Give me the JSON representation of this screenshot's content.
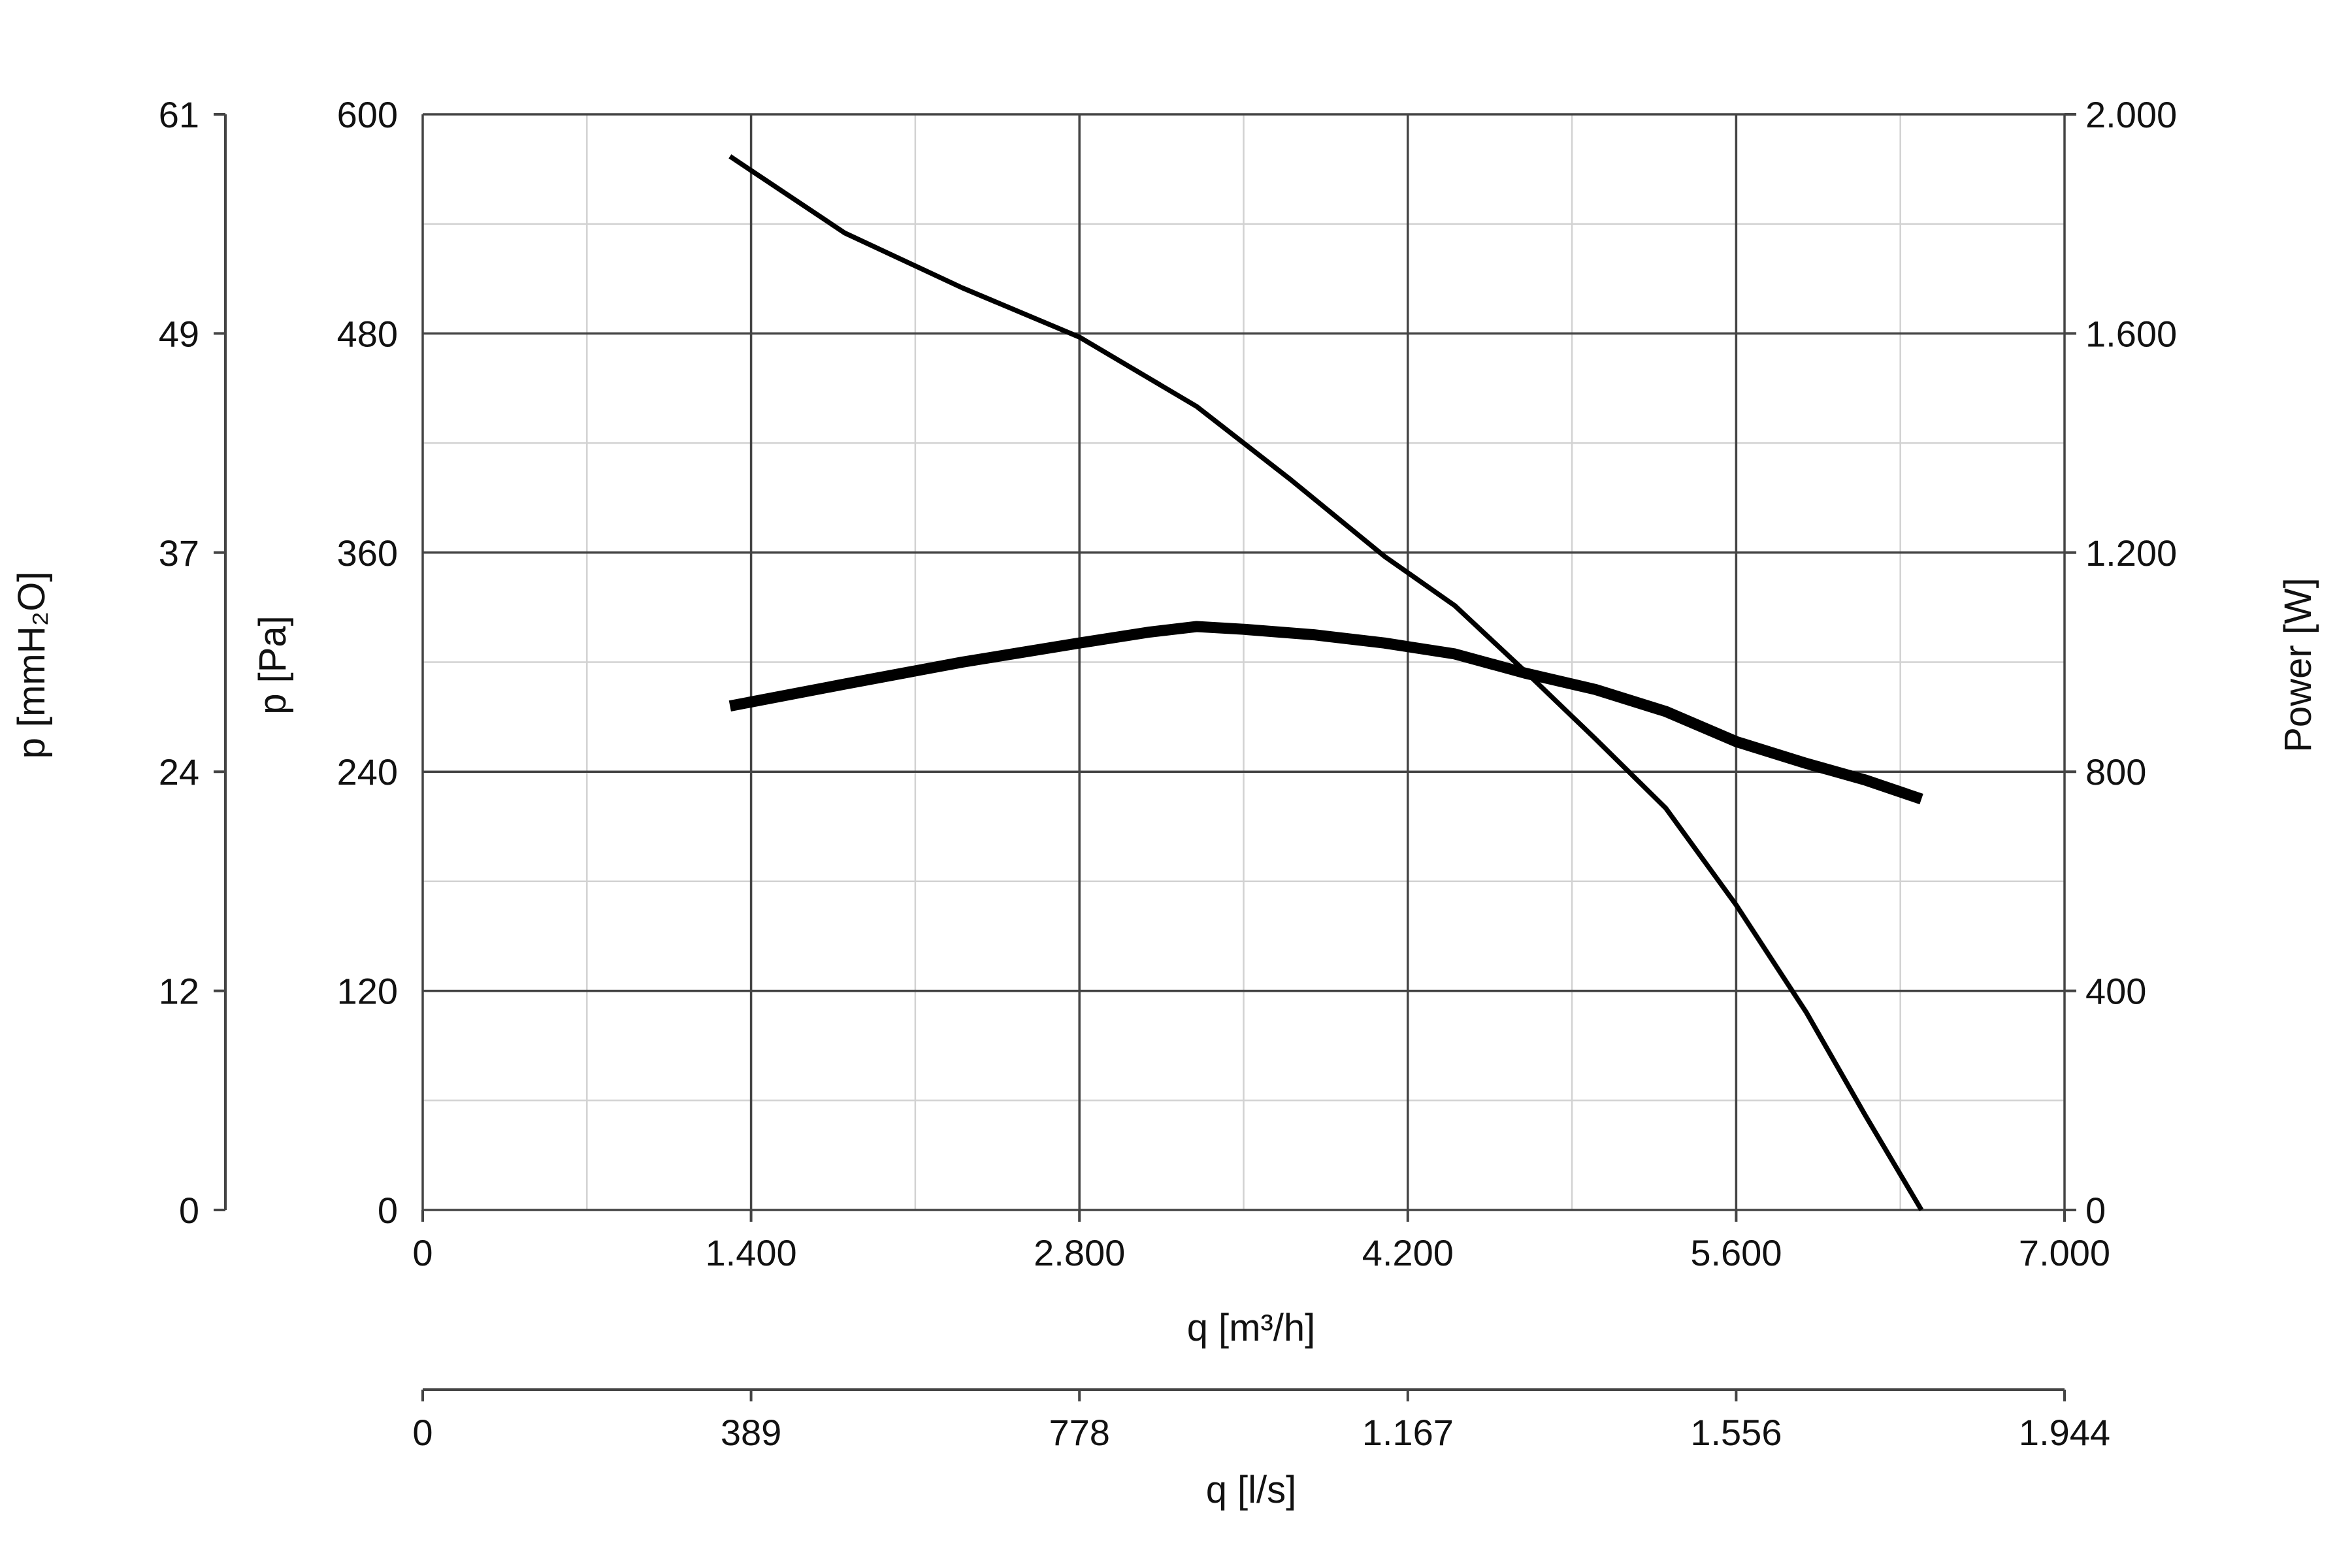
{
  "chart_data": {
    "type": "line",
    "title": "",
    "xlabel": "q [m³/h]",
    "xlabel_secondary": "q [l/s]",
    "ylabel": "p [Pa]",
    "ylabel_secondary": "p [mmH₂O]",
    "ylabel_right": "Power [W]",
    "xlim": [
      0,
      7000
    ],
    "ylim": [
      0,
      600
    ],
    "ylim_right": [
      0,
      2000
    ],
    "grid": true,
    "x_ticks": [
      {
        "value": 0,
        "label": "0"
      },
      {
        "value": 1400,
        "label": "1.400"
      },
      {
        "value": 2800,
        "label": "2.800"
      },
      {
        "value": 4200,
        "label": "4.200"
      },
      {
        "value": 5600,
        "label": "5.600"
      },
      {
        "value": 7000,
        "label": "7.000"
      }
    ],
    "x_ticks_secondary": [
      {
        "value": 0,
        "label": "0"
      },
      {
        "value": 1400,
        "label": "389"
      },
      {
        "value": 2800,
        "label": "778"
      },
      {
        "value": 4200,
        "label": "1.167"
      },
      {
        "value": 5600,
        "label": "1.556"
      },
      {
        "value": 7000,
        "label": "1.944"
      }
    ],
    "y_ticks": [
      {
        "value": 0,
        "label": "0"
      },
      {
        "value": 120,
        "label": "120"
      },
      {
        "value": 240,
        "label": "240"
      },
      {
        "value": 360,
        "label": "360"
      },
      {
        "value": 480,
        "label": "480"
      },
      {
        "value": 600,
        "label": "600"
      }
    ],
    "y_ticks_secondary": [
      {
        "value": 0,
        "label": "0"
      },
      {
        "value": 120,
        "label": "12"
      },
      {
        "value": 240,
        "label": "24"
      },
      {
        "value": 360,
        "label": "37"
      },
      {
        "value": 480,
        "label": "49"
      },
      {
        "value": 600,
        "label": "61"
      }
    ],
    "y_ticks_right": [
      {
        "value": 0,
        "label": "0"
      },
      {
        "value": 400,
        "label": "400"
      },
      {
        "value": 800,
        "label": "800"
      },
      {
        "value": 1200,
        "label": "1.200"
      },
      {
        "value": 1600,
        "label": "1.600"
      },
      {
        "value": 2000,
        "label": "2.000"
      }
    ],
    "series": [
      {
        "axis": "left",
        "line_weight": "thin",
        "x": [
          1310,
          1800,
          2300,
          2800,
          3300,
          3700,
          4100,
          4400,
          4700,
          5000,
          5300,
          5600,
          5900,
          6150,
          6390
        ],
        "y": [
          577,
          535,
          505,
          478,
          440,
          400,
          358,
          331,
          295,
          258,
          220,
          167,
          108,
          52,
          0
        ]
      },
      {
        "axis": "right",
        "line_weight": "thick",
        "x": [
          1310,
          1800,
          2300,
          2800,
          3100,
          3300,
          3500,
          3800,
          4100,
          4400,
          4700,
          5000,
          5300,
          5600,
          5900,
          6150,
          6390
        ],
        "y": [
          920,
          960,
          1000,
          1035,
          1055,
          1065,
          1060,
          1050,
          1035,
          1015,
          980,
          950,
          910,
          855,
          815,
          785,
          750
        ]
      }
    ]
  }
}
